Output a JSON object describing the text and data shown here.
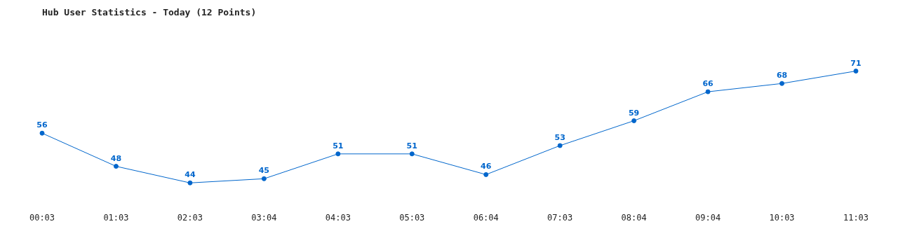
{
  "chart_data": {
    "type": "line",
    "title": "Hub User Statistics - Today (12 Points)",
    "categories": [
      "00:03",
      "01:03",
      "02:03",
      "03:04",
      "04:03",
      "05:03",
      "06:04",
      "07:03",
      "08:04",
      "09:04",
      "10:03",
      "11:03"
    ],
    "series": [
      {
        "color": "#0066cc",
        "values": [
          56,
          48,
          44,
          45,
          51,
          51,
          46,
          53,
          59,
          66,
          68,
          71
        ]
      }
    ],
    "data_labels": true,
    "marker": "circle",
    "line_style": "solid",
    "grid": false,
    "legend": false,
    "tick_labels": "x"
  }
}
